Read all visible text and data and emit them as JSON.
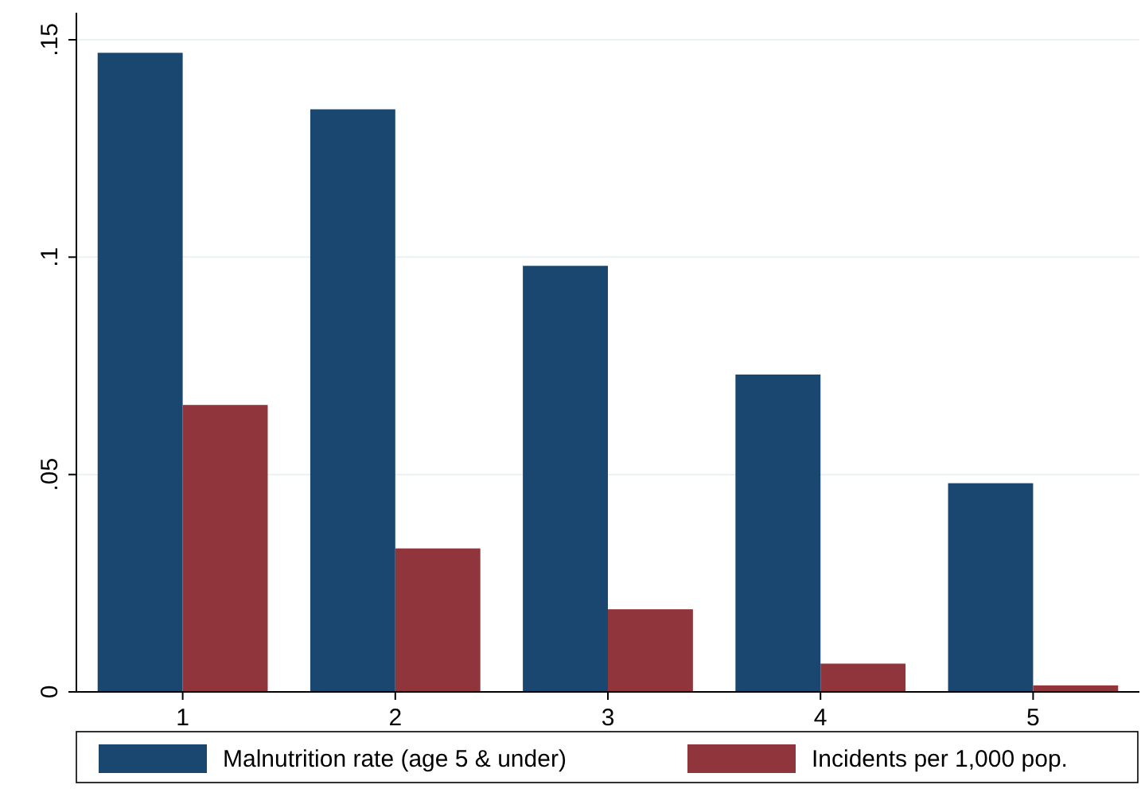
{
  "chart_data": {
    "type": "bar",
    "categories": [
      "1",
      "2",
      "3",
      "4",
      "5"
    ],
    "series": [
      {
        "name": "Malnutrition rate (age 5 & under)",
        "color": "#1a476f",
        "values": [
          0.147,
          0.134,
          0.098,
          0.073,
          0.048
        ]
      },
      {
        "name": "Incidents per 1,000 pop.",
        "color": "#90353b",
        "values": [
          0.066,
          0.033,
          0.019,
          0.0065,
          0.0015
        ]
      }
    ],
    "ylim": [
      0,
      0.15
    ],
    "yticks": [
      {
        "value": 0,
        "label": "0"
      },
      {
        "value": 0.05,
        "label": ".05"
      },
      {
        "value": 0.1,
        "label": ".1"
      },
      {
        "value": 0.15,
        "label": ".15"
      }
    ],
    "grid": "y",
    "legend": "bottom"
  }
}
